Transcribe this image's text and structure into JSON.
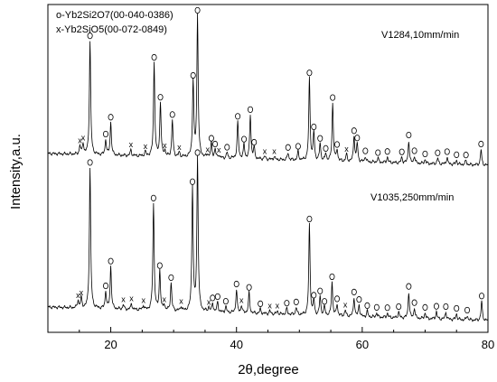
{
  "chart_data": {
    "type": "line",
    "xlabel": "2θ,degree",
    "ylabel": "Intensity,a.u.",
    "xlim": [
      10,
      80
    ],
    "x_ticks": [
      20,
      40,
      60,
      80
    ],
    "y_ticks_visible": false,
    "legend": {
      "placement": "top-left",
      "entries": [
        "o-Yb2Si2O7(00-040-0386)",
        "x-Yb2SiO5(00-072-0849)"
      ]
    },
    "series": [
      {
        "name": "V1284,10mm/min",
        "peaks": [
          {
            "x": 15.1,
            "h": 0.06,
            "m": "x"
          },
          {
            "x": 15.6,
            "h": 0.08,
            "m": "x"
          },
          {
            "x": 16.7,
            "h": 0.8,
            "m": "o"
          },
          {
            "x": 19.2,
            "h": 0.11,
            "m": "o"
          },
          {
            "x": 20.0,
            "h": 0.23,
            "m": "o"
          },
          {
            "x": 23.2,
            "h": 0.04,
            "m": "x"
          },
          {
            "x": 25.5,
            "h": 0.03,
            "m": "x"
          },
          {
            "x": 26.9,
            "h": 0.66,
            "m": "o"
          },
          {
            "x": 27.9,
            "h": 0.38,
            "m": "o"
          },
          {
            "x": 28.6,
            "h": 0.04,
            "m": "x"
          },
          {
            "x": 29.8,
            "h": 0.26,
            "m": "o"
          },
          {
            "x": 30.9,
            "h": 0.03,
            "m": "x"
          },
          {
            "x": 33.1,
            "h": 0.54,
            "m": "o"
          },
          {
            "x": 33.8,
            "h": 1.0,
            "m": "o"
          },
          {
            "x": 35.4,
            "h": 0.02,
            "m": "x"
          },
          {
            "x": 36.0,
            "h": 0.1,
            "m": "o"
          },
          {
            "x": 36.6,
            "h": 0.06,
            "m": "o"
          },
          {
            "x": 37.2,
            "h": 0.02,
            "m": "x"
          },
          {
            "x": 38.5,
            "h": 0.04,
            "m": "o"
          },
          {
            "x": 40.2,
            "h": 0.26,
            "m": "o"
          },
          {
            "x": 41.2,
            "h": 0.1,
            "m": "o"
          },
          {
            "x": 42.2,
            "h": 0.31,
            "m": "o"
          },
          {
            "x": 42.8,
            "h": 0.08,
            "m": "o"
          },
          {
            "x": 44.5,
            "h": 0.02,
            "m": "x"
          },
          {
            "x": 46.0,
            "h": 0.02,
            "m": "x"
          },
          {
            "x": 48.2,
            "h": 0.05,
            "m": "o"
          },
          {
            "x": 49.8,
            "h": 0.06,
            "m": "o"
          },
          {
            "x": 51.6,
            "h": 0.58,
            "m": "o"
          },
          {
            "x": 52.3,
            "h": 0.2,
            "m": "o"
          },
          {
            "x": 53.3,
            "h": 0.12,
            "m": "o"
          },
          {
            "x": 54.2,
            "h": 0.05,
            "m": "o"
          },
          {
            "x": 55.3,
            "h": 0.41,
            "m": "o"
          },
          {
            "x": 56.0,
            "h": 0.08,
            "m": "o"
          },
          {
            "x": 57.5,
            "h": 0.05,
            "m": "x"
          },
          {
            "x": 58.7,
            "h": 0.18,
            "m": "o"
          },
          {
            "x": 59.2,
            "h": 0.13,
            "m": "o"
          },
          {
            "x": 60.5,
            "h": 0.04,
            "m": "o"
          },
          {
            "x": 62.5,
            "h": 0.03,
            "m": "o"
          },
          {
            "x": 64.0,
            "h": 0.04,
            "m": "o"
          },
          {
            "x": 66.3,
            "h": 0.04,
            "m": "o"
          },
          {
            "x": 67.4,
            "h": 0.16,
            "m": "o"
          },
          {
            "x": 68.3,
            "h": 0.05,
            "m": "o"
          },
          {
            "x": 70.0,
            "h": 0.03,
            "m": "o"
          },
          {
            "x": 72.0,
            "h": 0.04,
            "m": "o"
          },
          {
            "x": 73.5,
            "h": 0.05,
            "m": "o"
          },
          {
            "x": 75.0,
            "h": 0.03,
            "m": "o"
          },
          {
            "x": 76.5,
            "h": 0.03,
            "m": "o"
          },
          {
            "x": 78.9,
            "h": 0.11,
            "m": "o"
          }
        ]
      },
      {
        "name": "V1035,250mm/min",
        "peaks": [
          {
            "x": 14.8,
            "h": 0.05,
            "m": "x"
          },
          {
            "x": 15.3,
            "h": 0.07,
            "m": "x"
          },
          {
            "x": 16.7,
            "h": 0.96,
            "m": "o"
          },
          {
            "x": 19.2,
            "h": 0.12,
            "m": "o"
          },
          {
            "x": 20.0,
            "h": 0.29,
            "m": "o"
          },
          {
            "x": 22.0,
            "h": 0.03,
            "m": "x"
          },
          {
            "x": 23.3,
            "h": 0.04,
            "m": "x"
          },
          {
            "x": 25.2,
            "h": 0.03,
            "m": "x"
          },
          {
            "x": 26.8,
            "h": 0.73,
            "m": "o"
          },
          {
            "x": 27.8,
            "h": 0.27,
            "m": "o"
          },
          {
            "x": 28.5,
            "h": 0.04,
            "m": "x"
          },
          {
            "x": 29.6,
            "h": 0.19,
            "m": "o"
          },
          {
            "x": 31.2,
            "h": 0.03,
            "m": "x"
          },
          {
            "x": 33.0,
            "h": 0.85,
            "m": "o"
          },
          {
            "x": 33.8,
            "h": 1.05,
            "m": "o"
          },
          {
            "x": 35.6,
            "h": 0.03,
            "m": "x"
          },
          {
            "x": 36.2,
            "h": 0.06,
            "m": "o"
          },
          {
            "x": 37.0,
            "h": 0.07,
            "m": "o"
          },
          {
            "x": 38.3,
            "h": 0.04,
            "m": "o"
          },
          {
            "x": 40.0,
            "h": 0.16,
            "m": "o"
          },
          {
            "x": 40.8,
            "h": 0.05,
            "m": "x"
          },
          {
            "x": 42.0,
            "h": 0.14,
            "m": "o"
          },
          {
            "x": 43.8,
            "h": 0.03,
            "m": "o"
          },
          {
            "x": 45.3,
            "h": 0.02,
            "m": "x"
          },
          {
            "x": 46.5,
            "h": 0.02,
            "m": "x"
          },
          {
            "x": 48.0,
            "h": 0.04,
            "m": "o"
          },
          {
            "x": 49.5,
            "h": 0.05,
            "m": "o"
          },
          {
            "x": 51.6,
            "h": 0.62,
            "m": "o"
          },
          {
            "x": 52.3,
            "h": 0.1,
            "m": "o"
          },
          {
            "x": 53.3,
            "h": 0.13,
            "m": "o"
          },
          {
            "x": 54.0,
            "h": 0.06,
            "m": "o"
          },
          {
            "x": 55.2,
            "h": 0.23,
            "m": "o"
          },
          {
            "x": 56.0,
            "h": 0.08,
            "m": "o"
          },
          {
            "x": 57.3,
            "h": 0.04,
            "m": "x"
          },
          {
            "x": 58.7,
            "h": 0.13,
            "m": "o"
          },
          {
            "x": 59.5,
            "h": 0.08,
            "m": "o"
          },
          {
            "x": 60.8,
            "h": 0.04,
            "m": "o"
          },
          {
            "x": 62.3,
            "h": 0.03,
            "m": "o"
          },
          {
            "x": 64.0,
            "h": 0.03,
            "m": "o"
          },
          {
            "x": 65.8,
            "h": 0.04,
            "m": "o"
          },
          {
            "x": 67.4,
            "h": 0.18,
            "m": "o"
          },
          {
            "x": 68.3,
            "h": 0.07,
            "m": "o"
          },
          {
            "x": 70.0,
            "h": 0.04,
            "m": "o"
          },
          {
            "x": 71.8,
            "h": 0.05,
            "m": "o"
          },
          {
            "x": 73.3,
            "h": 0.05,
            "m": "o"
          },
          {
            "x": 75.0,
            "h": 0.04,
            "m": "o"
          },
          {
            "x": 76.7,
            "h": 0.03,
            "m": "o"
          },
          {
            "x": 79.0,
            "h": 0.13,
            "m": "o"
          }
        ]
      }
    ]
  }
}
